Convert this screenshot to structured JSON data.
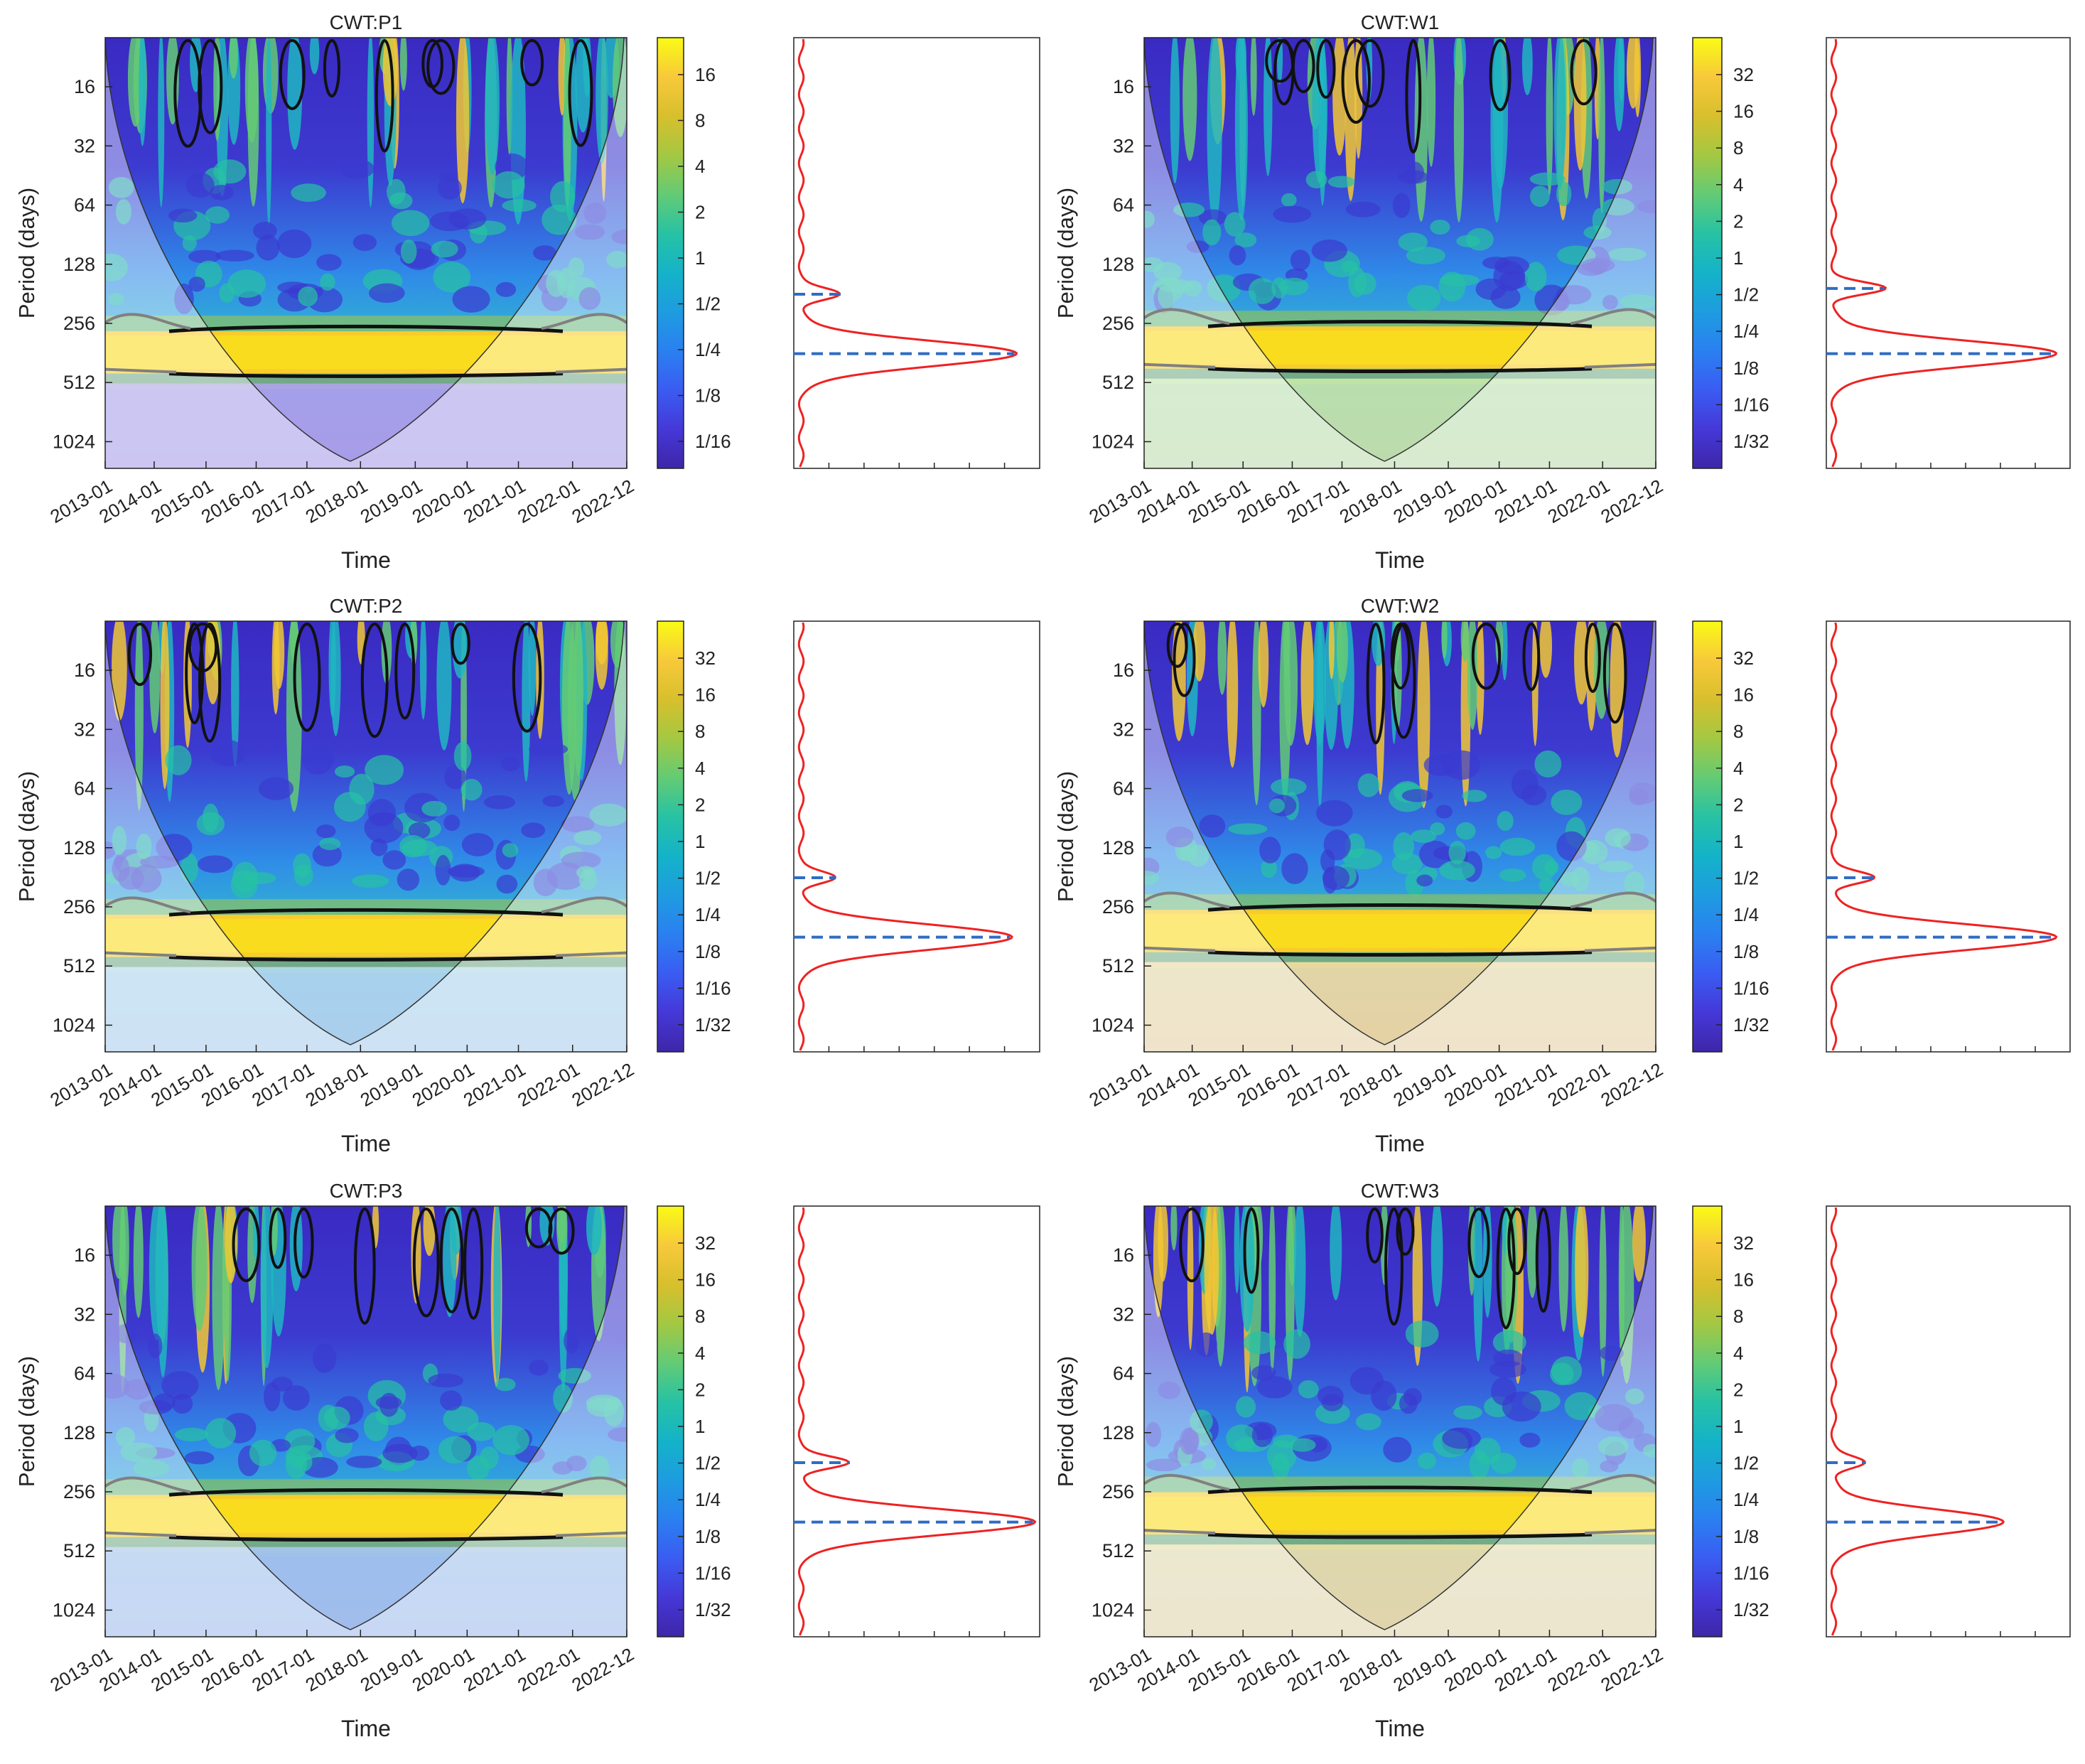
{
  "figure": {
    "time_axis_label": "Time",
    "period_axis_label": "Period (days)"
  },
  "colors": {
    "spectrum_line": "#ee2222",
    "peak_marker": "#2f6cc4",
    "significance_contour": "#111111",
    "edge_contour": "#808080"
  },
  "chart_data": [
    {
      "type": "heatmap",
      "title": "CWT:P1",
      "xlabel": "Time",
      "ylabel": "Period (days)",
      "x_tick_labels": [
        "2013-01",
        "2014-01",
        "2015-01",
        "2016-01",
        "2017-01",
        "2018-01",
        "2019-01",
        "2020-01",
        "2021-01",
        "2022-01",
        "2022-12"
      ],
      "y_tick_labels": [
        "16",
        "32",
        "64",
        "128",
        "256",
        "512",
        "1024"
      ],
      "ylim": [
        9,
        1400
      ],
      "colorbar_labels": [
        "16",
        "8",
        "4",
        "2",
        "1",
        "1/2",
        "1/4",
        "1/8",
        "1/16"
      ],
      "low_band_color": "#b0a4ea",
      "scale_band_period": 360,
      "secondary_band_period": 182,
      "global_spectrum": {
        "peaks": [
          {
            "period": 182,
            "power": 0.17
          },
          {
            "period": 365,
            "power": 0.92
          }
        ]
      }
    },
    {
      "type": "heatmap",
      "title": "CWT:W1",
      "xlabel": "Time",
      "ylabel": "Period (days)",
      "x_tick_labels": [
        "2013-01",
        "2014-01",
        "2015-01",
        "2016-01",
        "2017-01",
        "2018-01",
        "2019-01",
        "2020-01",
        "2021-01",
        "2022-01",
        "2022-12"
      ],
      "y_tick_labels": [
        "16",
        "32",
        "64",
        "128",
        "256",
        "512",
        "1024"
      ],
      "ylim": [
        9,
        1400
      ],
      "colorbar_labels": [
        "32",
        "16",
        "8",
        "4",
        "2",
        "1",
        "1/2",
        "1/4",
        "1/8",
        "1/16",
        "1/32"
      ],
      "low_band_color": "#c8eaa8",
      "scale_band_period": 340,
      "secondary_band_period": 170,
      "global_spectrum": {
        "peaks": [
          {
            "period": 170,
            "power": 0.22
          },
          {
            "period": 365,
            "power": 0.96
          }
        ]
      }
    },
    {
      "type": "heatmap",
      "title": "CWT:P2",
      "xlabel": "Time",
      "ylabel": "Period (days)",
      "x_tick_labels": [
        "2013-01",
        "2014-01",
        "2015-01",
        "2016-01",
        "2017-01",
        "2018-01",
        "2019-01",
        "2020-01",
        "2021-01",
        "2022-01",
        "2022-12"
      ],
      "y_tick_labels": [
        "16",
        "32",
        "64",
        "128",
        "256",
        "512",
        "1024"
      ],
      "ylim": [
        9,
        1400
      ],
      "colorbar_labels": [
        "32",
        "16",
        "8",
        "4",
        "2",
        "1",
        "1/2",
        "1/4",
        "1/8",
        "1/16",
        "1/32"
      ],
      "low_band_color": "#b4dcee",
      "scale_band_period": 360,
      "secondary_band_period": 182,
      "global_spectrum": {
        "peaks": [
          {
            "period": 182,
            "power": 0.15
          },
          {
            "period": 365,
            "power": 0.9
          }
        ]
      }
    },
    {
      "type": "heatmap",
      "title": "CWT:W2",
      "xlabel": "Time",
      "ylabel": "Period (days)",
      "x_tick_labels": [
        "2013-01",
        "2014-01",
        "2015-01",
        "2016-01",
        "2017-01",
        "2018-01",
        "2019-01",
        "2020-01",
        "2021-01",
        "2022-01",
        "2022-12"
      ],
      "y_tick_labels": [
        "16",
        "32",
        "64",
        "128",
        "256",
        "512",
        "1024"
      ],
      "ylim": [
        9,
        1400
      ],
      "colorbar_labels": [
        "32",
        "16",
        "8",
        "4",
        "2",
        "1",
        "1/2",
        "1/4",
        "1/8",
        "1/16",
        "1/32"
      ],
      "low_band_color": "#f4dfa0",
      "scale_band_period": 340,
      "secondary_band_period": 170,
      "global_spectrum": {
        "peaks": [
          {
            "period": 182,
            "power": 0.18
          },
          {
            "period": 365,
            "power": 0.96
          }
        ]
      }
    },
    {
      "type": "heatmap",
      "title": "CWT:P3",
      "xlabel": "Time",
      "ylabel": "Period (days)",
      "x_tick_labels": [
        "2013-01",
        "2014-01",
        "2015-01",
        "2016-01",
        "2017-01",
        "2018-01",
        "2019-01",
        "2020-01",
        "2021-01",
        "2022-01",
        "2022-12"
      ],
      "y_tick_labels": [
        "16",
        "32",
        "64",
        "128",
        "256",
        "512",
        "1024"
      ],
      "ylim": [
        9,
        1400
      ],
      "colorbar_labels": [
        "32",
        "16",
        "8",
        "4",
        "2",
        "1",
        "1/2",
        "1/4",
        "1/8",
        "1/16",
        "1/32"
      ],
      "low_band_color": "#a8c8ee",
      "scale_band_period": 340,
      "secondary_band_period": 182,
      "global_spectrum": {
        "peaks": [
          {
            "period": 182,
            "power": 0.21
          },
          {
            "period": 365,
            "power": 1.0
          }
        ]
      }
    },
    {
      "type": "heatmap",
      "title": "CWT:W3",
      "xlabel": "Time",
      "ylabel": "Period (days)",
      "x_tick_labels": [
        "2013-01",
        "2014-01",
        "2015-01",
        "2016-01",
        "2017-01",
        "2018-01",
        "2019-01",
        "2020-01",
        "2021-01",
        "2022-01",
        "2022-12"
      ],
      "y_tick_labels": [
        "16",
        "32",
        "64",
        "128",
        "256",
        "512",
        "1024"
      ],
      "ylim": [
        9,
        1400
      ],
      "colorbar_labels": [
        "32",
        "16",
        "8",
        "4",
        "2",
        "1",
        "1/2",
        "1/4",
        "1/8",
        "1/16",
        "1/32"
      ],
      "low_band_color": "#f0e2a8",
      "scale_band_period": 330,
      "secondary_band_period": 170,
      "global_spectrum": {
        "peaks": [
          {
            "period": 182,
            "power": 0.14
          },
          {
            "period": 365,
            "power": 0.73
          }
        ]
      }
    }
  ]
}
